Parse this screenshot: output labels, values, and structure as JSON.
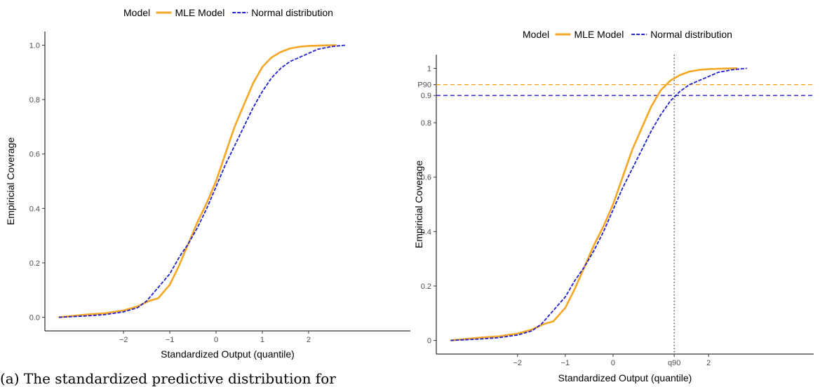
{
  "chart_data": [
    {
      "type": "line",
      "xlabel": "Standardized Output (quantile)",
      "ylabel": "Empiricial Coverage",
      "xlim": [
        -3.7,
        4.2
      ],
      "ylim": [
        -0.05,
        1.05
      ],
      "xticks": [
        {
          "value": -2,
          "label": "−2"
        },
        {
          "value": -1,
          "label": "−1"
        },
        {
          "value": 0,
          "label": "0"
        },
        {
          "value": 1,
          "label": "1"
        },
        {
          "value": 2,
          "label": "2"
        }
      ],
      "yticks": [
        {
          "value": 0,
          "label": "0.0"
        },
        {
          "value": 0.2,
          "label": "0.2"
        },
        {
          "value": 0.4,
          "label": "0.4"
        },
        {
          "value": 0.6,
          "label": "0.6"
        },
        {
          "value": 0.8,
          "label": "0.8"
        },
        {
          "value": 1,
          "label": "1.0"
        }
      ],
      "legend": {
        "title": "Model",
        "placement": "top",
        "entries": [
          {
            "label": "MLE Model",
            "color": "#f5a623",
            "style": "solid"
          },
          {
            "label": "Normal distribution",
            "color": "#1f1fcf",
            "style": "dashed"
          }
        ]
      },
      "series": [
        {
          "name": "MLE Model",
          "color": "#f5a623",
          "x": [
            -3.4,
            -2.8,
            -2.4,
            -2.0,
            -1.7,
            -1.45,
            -1.25,
            -1.0,
            -0.8,
            -0.6,
            -0.4,
            -0.2,
            0.0,
            0.2,
            0.4,
            0.6,
            0.8,
            1.0,
            1.2,
            1.4,
            1.6,
            1.8,
            2.0,
            2.3,
            2.6
          ],
          "y": [
            0.0,
            0.01,
            0.015,
            0.025,
            0.04,
            0.06,
            0.07,
            0.12,
            0.19,
            0.27,
            0.35,
            0.42,
            0.5,
            0.6,
            0.7,
            0.78,
            0.86,
            0.92,
            0.955,
            0.975,
            0.988,
            0.994,
            0.997,
            0.999,
            1.0
          ]
        },
        {
          "name": "Normal distribution",
          "color": "#1f1fcf",
          "x": [
            -3.4,
            -2.8,
            -2.4,
            -2.0,
            -1.7,
            -1.5,
            -1.3,
            -1.0,
            -0.8,
            -0.6,
            -0.4,
            -0.2,
            0.0,
            0.2,
            0.4,
            0.6,
            0.8,
            1.0,
            1.2,
            1.4,
            1.6,
            1.8,
            2.0,
            2.2,
            2.5,
            2.8
          ],
          "y": [
            0.0,
            0.005,
            0.01,
            0.02,
            0.035,
            0.06,
            0.1,
            0.16,
            0.22,
            0.27,
            0.33,
            0.4,
            0.48,
            0.56,
            0.63,
            0.7,
            0.77,
            0.83,
            0.88,
            0.915,
            0.94,
            0.955,
            0.97,
            0.985,
            0.995,
            1.0
          ]
        }
      ]
    },
    {
      "type": "line",
      "xlabel": "Standardized Output (quantile)",
      "ylabel": "Empiricial Coverage",
      "xlim": [
        -3.7,
        4.2
      ],
      "ylim": [
        -0.05,
        1.05
      ],
      "xticks": [
        {
          "value": -2,
          "label": "−2"
        },
        {
          "value": -1,
          "label": "−1"
        },
        {
          "value": 0,
          "label": "0"
        },
        {
          "value": 1.28,
          "label": "q90"
        },
        {
          "value": 2,
          "label": "2"
        }
      ],
      "yticks": [
        {
          "value": 0,
          "label": "0"
        },
        {
          "value": 0.2,
          "label": "0.2"
        },
        {
          "value": 0.4,
          "label": "0.4"
        },
        {
          "value": 0.6,
          "label": "0.6"
        },
        {
          "value": 0.8,
          "label": "0.8"
        },
        {
          "value": 0.9,
          "label": "0.9"
        },
        {
          "value": 0.94,
          "label": "P90"
        },
        {
          "value": 1,
          "label": "1"
        }
      ],
      "legend": {
        "title": "Model",
        "placement": "top",
        "entries": [
          {
            "label": "MLE Model",
            "color": "#f5a623",
            "style": "solid"
          },
          {
            "label": "Normal distribution",
            "color": "#1f1fcf",
            "style": "dashed"
          }
        ]
      },
      "reference_lines": [
        {
          "type": "h",
          "value": 0.94,
          "color": "#f5a623",
          "dash": "6,4",
          "width": 1.4
        },
        {
          "type": "h",
          "value": 0.9,
          "color": "#1f1fcf",
          "dash": "6,4",
          "width": 1.4
        },
        {
          "type": "v",
          "value": 1.28,
          "color": "#333333",
          "dash": "1.5,3",
          "width": 1.2
        }
      ],
      "series": [
        {
          "name": "MLE Model",
          "color": "#f5a623",
          "x": [
            -3.4,
            -2.8,
            -2.4,
            -2.0,
            -1.7,
            -1.45,
            -1.25,
            -1.0,
            -0.8,
            -0.6,
            -0.4,
            -0.2,
            0.0,
            0.2,
            0.4,
            0.6,
            0.8,
            1.0,
            1.2,
            1.4,
            1.6,
            1.8,
            2.0,
            2.3,
            2.6
          ],
          "y": [
            0.0,
            0.01,
            0.015,
            0.025,
            0.04,
            0.06,
            0.07,
            0.12,
            0.19,
            0.27,
            0.35,
            0.42,
            0.5,
            0.6,
            0.7,
            0.78,
            0.86,
            0.92,
            0.955,
            0.975,
            0.988,
            0.994,
            0.997,
            0.999,
            1.0
          ]
        },
        {
          "name": "Normal distribution",
          "color": "#1f1fcf",
          "x": [
            -3.4,
            -2.8,
            -2.4,
            -2.0,
            -1.7,
            -1.5,
            -1.3,
            -1.0,
            -0.8,
            -0.6,
            -0.4,
            -0.2,
            0.0,
            0.2,
            0.4,
            0.6,
            0.8,
            1.0,
            1.2,
            1.4,
            1.6,
            1.8,
            2.0,
            2.2,
            2.5,
            2.8
          ],
          "y": [
            0.0,
            0.005,
            0.01,
            0.02,
            0.035,
            0.06,
            0.1,
            0.16,
            0.22,
            0.27,
            0.33,
            0.4,
            0.48,
            0.56,
            0.63,
            0.7,
            0.77,
            0.83,
            0.88,
            0.915,
            0.94,
            0.955,
            0.97,
            0.985,
            0.995,
            1.0
          ]
        }
      ]
    }
  ],
  "caption": "(a) The standardized predictive distribution for"
}
